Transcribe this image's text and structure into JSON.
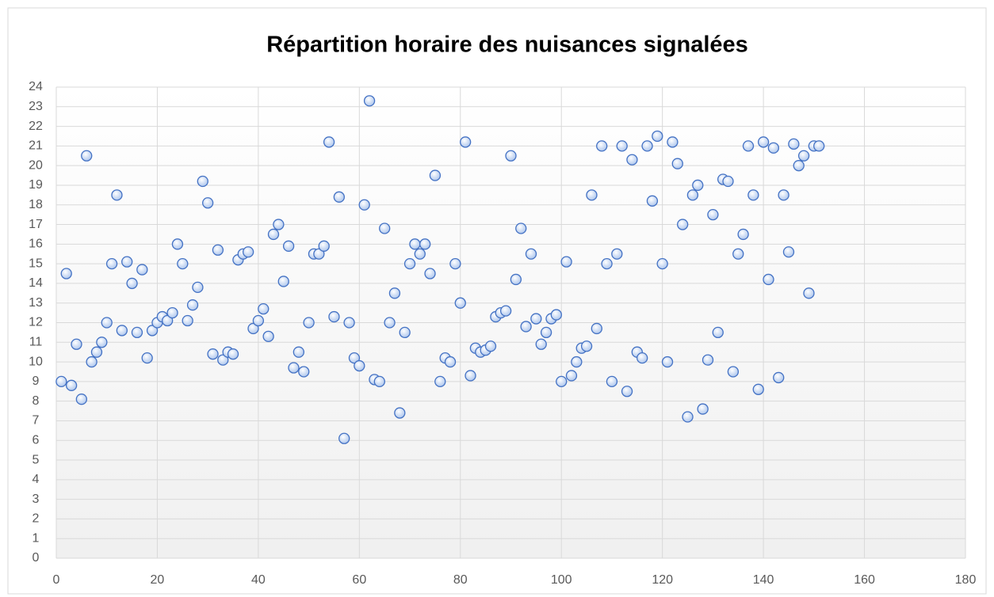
{
  "chart_data": {
    "type": "scatter",
    "title": "Répartition horaire des nuisances signalées",
    "x": [
      1,
      2,
      3,
      4,
      5,
      6,
      7,
      8,
      9,
      10,
      11,
      12,
      13,
      14,
      15,
      16,
      17,
      18,
      19,
      20,
      21,
      22,
      23,
      24,
      25,
      26,
      27,
      28,
      29,
      30,
      31,
      32,
      33,
      34,
      35,
      36,
      37,
      38,
      39,
      40,
      41,
      42,
      43,
      44,
      45,
      46,
      47,
      48,
      49,
      50,
      51,
      52,
      53,
      54,
      55,
      56,
      57,
      58,
      59,
      60,
      61,
      62,
      63,
      64,
      65,
      66,
      67,
      68,
      69,
      70,
      71,
      72,
      73,
      74,
      75,
      76,
      77,
      78,
      79,
      80,
      81,
      82,
      83,
      84,
      85,
      86,
      87,
      88,
      89,
      90,
      91,
      92,
      93,
      94,
      95,
      96,
      97,
      98,
      99,
      100,
      101,
      102,
      103,
      104,
      105,
      106,
      107,
      108,
      109,
      110,
      111,
      112,
      113,
      114,
      115,
      116,
      117,
      118,
      119,
      120,
      121,
      122,
      123,
      124,
      125,
      126,
      127,
      128,
      129,
      130,
      131,
      132,
      133,
      134,
      135,
      136,
      137,
      138,
      139,
      140,
      141,
      142,
      143,
      144,
      145,
      146,
      147,
      148,
      149,
      150,
      151
    ],
    "values": [
      9.0,
      14.5,
      8.8,
      10.9,
      8.1,
      20.5,
      10.0,
      10.5,
      11.0,
      12.0,
      15.0,
      18.5,
      11.6,
      15.1,
      14.0,
      11.5,
      14.7,
      10.2,
      11.6,
      12.0,
      12.3,
      12.1,
      12.5,
      16.0,
      15.0,
      12.1,
      12.9,
      13.8,
      19.2,
      18.1,
      10.4,
      15.7,
      10.1,
      10.5,
      10.4,
      15.2,
      15.5,
      15.6,
      11.7,
      12.1,
      12.7,
      11.3,
      16.5,
      17.0,
      14.1,
      15.9,
      9.7,
      10.5,
      9.5,
      12.0,
      15.5,
      15.5,
      15.9,
      21.2,
      12.3,
      18.4,
      6.1,
      12.0,
      10.2,
      9.8,
      18.0,
      23.3,
      9.1,
      9.0,
      16.8,
      12.0,
      13.5,
      7.4,
      11.5,
      15.0,
      16.0,
      15.5,
      16.0,
      14.5,
      19.5,
      9.0,
      10.2,
      10.0,
      15.0,
      13.0,
      21.2,
      9.3,
      10.7,
      10.5,
      10.6,
      10.8,
      12.3,
      12.5,
      12.6,
      20.5,
      14.2,
      16.8,
      11.8,
      15.5,
      12.2,
      10.9,
      11.5,
      12.2,
      12.4,
      9.0,
      15.1,
      9.3,
      10.0,
      10.7,
      10.8,
      18.5,
      11.7,
      21.0,
      15.0,
      9.0,
      15.5,
      21.0,
      8.5,
      20.3,
      10.5,
      10.2,
      21.0,
      18.2,
      21.5,
      15.0,
      10.0,
      21.2,
      20.1,
      17.0,
      7.2,
      18.5,
      19.0,
      7.6,
      10.1,
      17.5,
      11.5,
      19.3,
      19.2,
      9.5,
      15.5,
      16.5,
      21.0,
      18.5,
      8.6,
      21.2,
      14.2,
      20.9,
      9.2,
      18.5,
      15.6,
      21.1,
      20.0,
      20.5,
      13.5,
      21.0,
      21.0
    ],
    "color": "#4472c4",
    "xlim": [
      0,
      180
    ],
    "xticks": [
      0,
      20,
      40,
      60,
      80,
      100,
      120,
      140,
      160,
      180
    ],
    "ylim": [
      0,
      24
    ],
    "yticks": [
      0,
      1,
      2,
      3,
      4,
      5,
      6,
      7,
      8,
      9,
      10,
      11,
      12,
      13,
      14,
      15,
      16,
      17,
      18,
      19,
      20,
      21,
      22,
      23,
      24
    ],
    "grid": true
  }
}
